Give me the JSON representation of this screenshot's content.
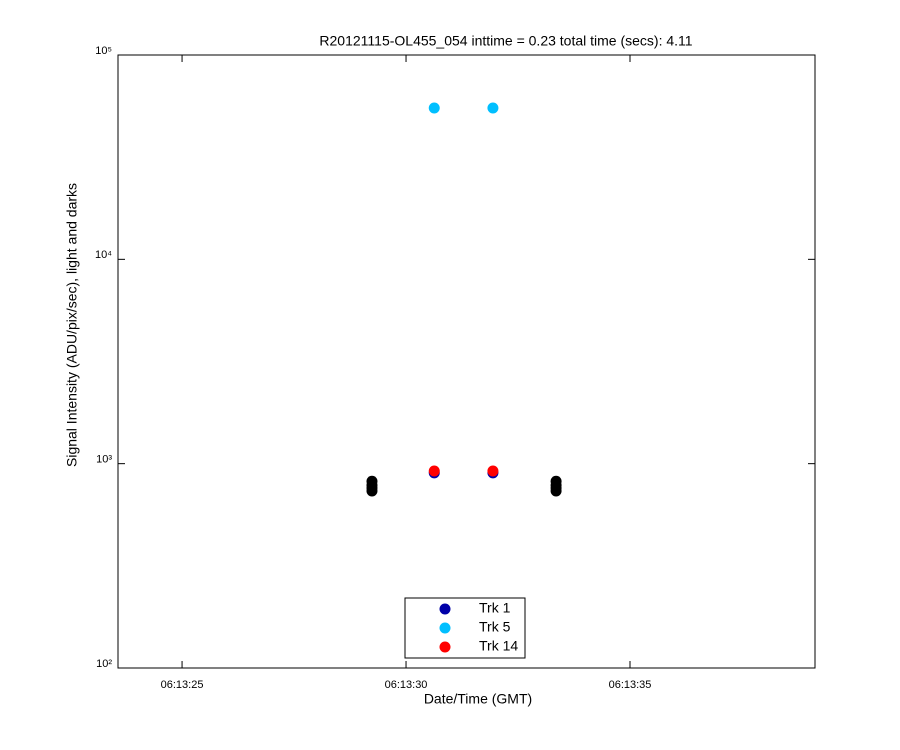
{
  "chart_data": {
    "type": "scatter",
    "title": "R20121115-OL455_054 inttime = 0.23 total time (secs): 4.11",
    "xlabel": "Date/Time (GMT)",
    "ylabel": "Signal Intensity (ADU/pix/sec), light and darks",
    "yscale": "log",
    "xlim": [
      22403.57,
      22419.13
    ],
    "ylim": [
      100,
      100000
    ],
    "xticks": [
      {
        "value": 22405,
        "label": "06:13:25"
      },
      {
        "value": 22410,
        "label": "06:13:30"
      },
      {
        "value": 22415,
        "label": "06:13:35"
      }
    ],
    "yticks": [
      {
        "value": 100,
        "label": "10²"
      },
      {
        "value": 1000,
        "label": "10³"
      },
      {
        "value": 10000,
        "label": "10⁴"
      },
      {
        "value": 100000,
        "label": "10⁵"
      }
    ],
    "legend": "bottom",
    "series": [
      {
        "color": "#000000",
        "x": [
          22409.24,
          22409.24,
          22409.24,
          22409.24,
          22413.35,
          22413.35,
          22413.35,
          22413.35
        ],
        "values": [
          820,
          785,
          760,
          735,
          820,
          785,
          760,
          735
        ]
      },
      {
        "name": "Trk 1",
        "color": "#0000a8",
        "x": [
          22410.63,
          22411.94
        ],
        "values": [
          901,
          901
        ]
      },
      {
        "name": "Trk 5",
        "color": "#00bfff",
        "x": [
          22410.63,
          22411.94
        ],
        "values": [
          55040,
          55040
        ]
      },
      {
        "name": "Trk 14",
        "color": "#ff0000",
        "x": [
          22410.63,
          22411.94
        ],
        "values": [
          921,
          921
        ]
      }
    ]
  }
}
